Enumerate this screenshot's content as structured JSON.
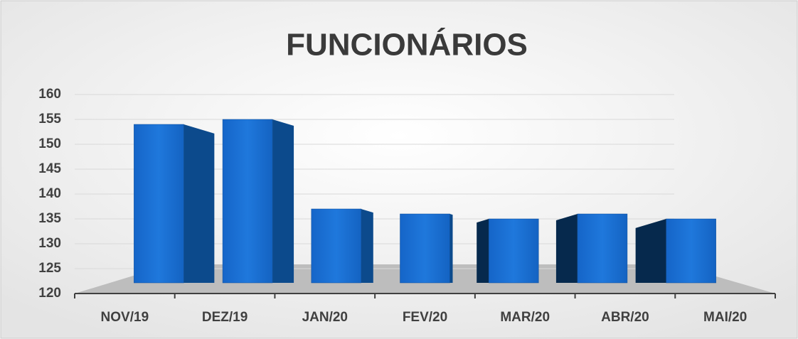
{
  "chart_data": {
    "type": "bar3d",
    "title": "FUNCIONÁRIOS",
    "categories": [
      "NOV/19",
      "DEZ/19",
      "JAN/20",
      "FEV/20",
      "MAR/20",
      "ABR/20",
      "MAI/20"
    ],
    "values": [
      154,
      155,
      137,
      136,
      135,
      136,
      135
    ],
    "color": "#1a6fd1",
    "ylim": [
      120,
      160
    ],
    "yticks": [
      120,
      125,
      130,
      135,
      140,
      145,
      150,
      155,
      160
    ],
    "grid": true
  }
}
